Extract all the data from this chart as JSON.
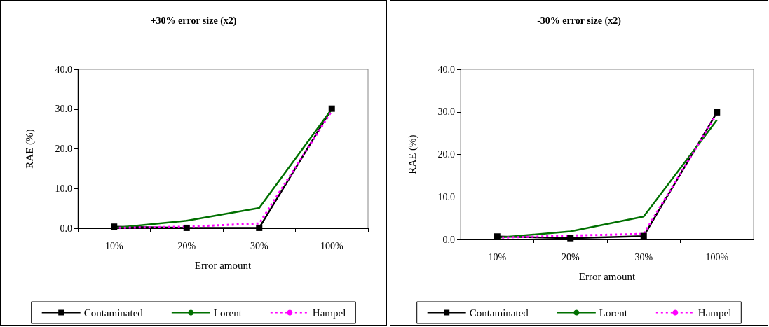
{
  "chart_data": [
    {
      "type": "line",
      "title": "+30% error size (x2)",
      "xlabel": "Error amount",
      "ylabel": "RAE (%)",
      "categories": [
        "10%",
        "20%",
        "30%",
        "100%"
      ],
      "ylim": [
        0,
        40
      ],
      "yticks": [
        {
          "value": 0,
          "label": "0.0"
        },
        {
          "value": 10,
          "label": "10.0"
        },
        {
          "value": 20,
          "label": "20.0"
        },
        {
          "value": 30,
          "label": "30.0"
        },
        {
          "value": 40,
          "label": "40.0"
        }
      ],
      "grid": false,
      "legend": "bottom",
      "series": [
        {
          "name": "Contaminated",
          "color": "#000000",
          "values": [
            0.4,
            0.1,
            0.1,
            30.1
          ],
          "marker": "square",
          "line_style": "solid"
        },
        {
          "name": "Lorent",
          "color": "#007000",
          "values": [
            0.1,
            1.9,
            5.1,
            30.0
          ],
          "marker": "none",
          "line_style": "solid"
        },
        {
          "name": "Hampel",
          "color": "#ff00ff",
          "values": [
            0.1,
            0.4,
            1.2,
            29.5
          ],
          "marker": "none",
          "line_style": "dotted"
        }
      ]
    },
    {
      "type": "line",
      "title": "-30% error size (x2)",
      "xlabel": "Error amount",
      "ylabel": "RAE (%)",
      "categories": [
        "10%",
        "20%",
        "30%",
        "100%"
      ],
      "ylim": [
        0,
        40
      ],
      "yticks": [
        {
          "value": 0,
          "label": "0.0"
        },
        {
          "value": 10,
          "label": "10.0"
        },
        {
          "value": 20,
          "label": "20.0"
        },
        {
          "value": 30,
          "label": "30.0"
        },
        {
          "value": 40,
          "label": "40.0"
        }
      ],
      "grid": false,
      "legend": "bottom",
      "series": [
        {
          "name": "Contaminated",
          "color": "#000000",
          "values": [
            0.7,
            0.3,
            0.8,
            29.9
          ],
          "marker": "square",
          "line_style": "solid"
        },
        {
          "name": "Lorent",
          "color": "#007000",
          "values": [
            0.4,
            1.9,
            5.4,
            28.1
          ],
          "marker": "none",
          "line_style": "solid"
        },
        {
          "name": "Hampel",
          "color": "#ff00ff",
          "values": [
            0.4,
            0.9,
            1.3,
            29.6
          ],
          "marker": "none",
          "line_style": "dotted"
        }
      ]
    }
  ]
}
